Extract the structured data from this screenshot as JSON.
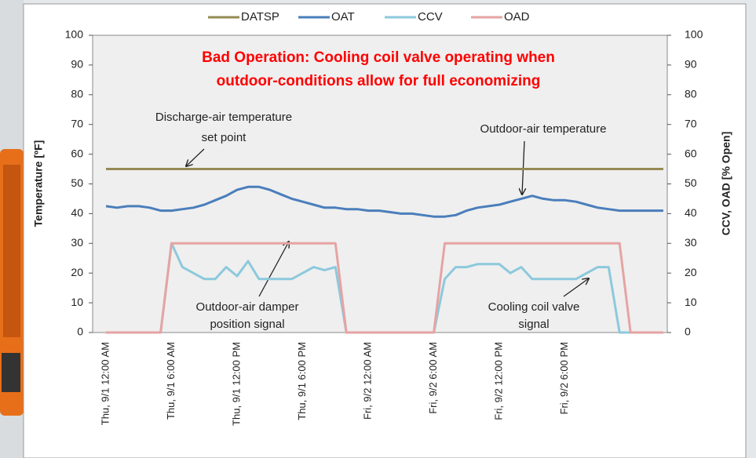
{
  "chart_data": {
    "type": "line",
    "title": [
      "Bad Operation: Cooling coil valve operating when",
      "outdoor-conditions allow for full economizing"
    ],
    "ylabel": "Temperature [ºF]",
    "y2label": "CCV, OAD [% Open]",
    "categories": [
      "Thu, 9/1 12:00 AM",
      null,
      null,
      null,
      null,
      null,
      "Thu, 9/1 6:00 AM",
      null,
      null,
      null,
      null,
      null,
      "Thu, 9/1 12:00 PM",
      null,
      null,
      null,
      null,
      null,
      "Thu, 9/1 6:00 PM",
      null,
      null,
      null,
      null,
      null,
      "Fri, 9/2 12:00 AM",
      null,
      null,
      null,
      null,
      null,
      "Fri, 9/2 6:00 AM",
      null,
      null,
      null,
      null,
      null,
      "Fri, 9/2 12:00 PM",
      null,
      null,
      null,
      null,
      null,
      "Fri, 9/2 6:00 PM",
      null,
      null,
      null,
      null,
      null,
      null,
      null,
      null,
      null
    ],
    "series": [
      {
        "name": "DATSP",
        "color": "#948a54",
        "values": [
          55,
          55,
          55,
          55,
          55,
          55,
          55,
          55,
          55,
          55,
          55,
          55,
          55,
          55,
          55,
          55,
          55,
          55,
          55,
          55,
          55,
          55,
          55,
          55,
          55,
          55,
          55,
          55,
          55,
          55,
          55,
          55,
          55,
          55,
          55,
          55,
          55,
          55,
          55,
          55,
          55,
          55,
          55,
          55,
          55,
          55,
          55,
          55,
          55,
          55,
          55,
          55
        ]
      },
      {
        "name": "OAT",
        "color": "#4a7ebb",
        "values": [
          42.5,
          42,
          42.5,
          42.5,
          42,
          41,
          41,
          41.5,
          42,
          43,
          44.5,
          46,
          48,
          49,
          49,
          48,
          46.5,
          45,
          44,
          43,
          42,
          42,
          41.5,
          41.5,
          41,
          41,
          40.5,
          40,
          40,
          39.5,
          39,
          39,
          39.5,
          41,
          42,
          42.5,
          43,
          44,
          45,
          46,
          45,
          44.5,
          44.5,
          44,
          43,
          42,
          41.5,
          41,
          41,
          41,
          41,
          41
        ]
      },
      {
        "name": "CCV",
        "color": "#8cc9dc",
        "axis": "y2",
        "values": [
          0,
          0,
          0,
          0,
          0,
          0,
          30,
          22,
          20,
          18,
          18,
          22,
          19,
          24,
          18,
          18,
          18,
          18,
          20,
          22,
          21,
          22,
          0,
          0,
          0,
          0,
          0,
          0,
          0,
          0,
          0,
          18,
          22,
          22,
          23,
          23,
          23,
          20,
          22,
          18,
          18,
          18,
          18,
          18,
          20,
          22,
          22,
          0,
          0,
          0,
          0,
          0
        ]
      },
      {
        "name": "OAD",
        "color": "#e6a3a3",
        "axis": "y2",
        "values": [
          0,
          0,
          0,
          0,
          0,
          0,
          30,
          30,
          30,
          30,
          30,
          30,
          30,
          30,
          30,
          30,
          30,
          30,
          30,
          30,
          30,
          30,
          0,
          0,
          0,
          0,
          0,
          0,
          0,
          0,
          0,
          30,
          30,
          30,
          30,
          30,
          30,
          30,
          30,
          30,
          30,
          30,
          30,
          30,
          30,
          30,
          30,
          30,
          0,
          0,
          0,
          0
        ]
      }
    ],
    "ylim": [
      0,
      100
    ],
    "yticks": [
      0,
      10,
      20,
      30,
      40,
      50,
      60,
      70,
      80,
      90,
      100
    ],
    "y2lim": [
      0,
      100
    ],
    "y2ticks": [
      0,
      10,
      20,
      30,
      40,
      50,
      60,
      70,
      80,
      90,
      100
    ],
    "legend": "top",
    "annotations": [
      "Discharge-air temperature",
      "set point",
      "Outdoor-air temperature",
      "Outdoor-air damper",
      "position signal",
      "Cooling coil valve",
      "signal"
    ]
  }
}
